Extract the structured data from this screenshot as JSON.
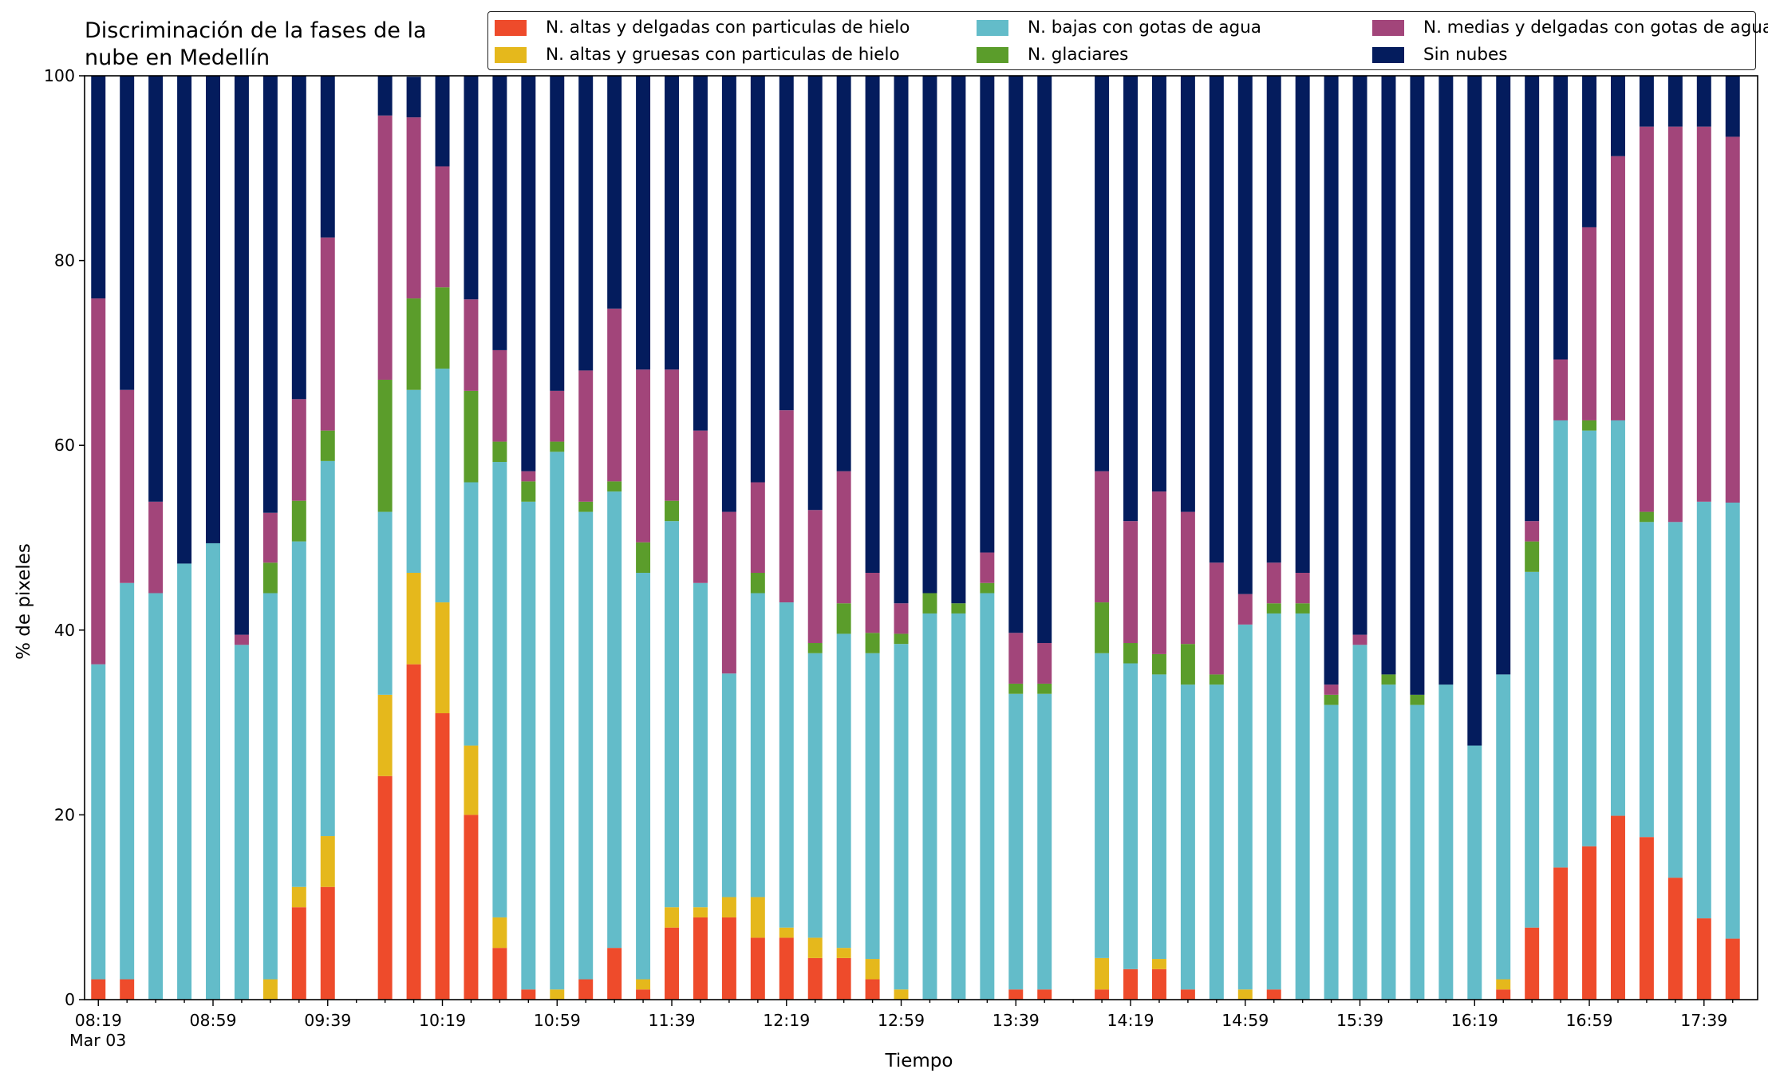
{
  "chart_data": {
    "type": "bar",
    "stacked": true,
    "title": "Discriminación de la fases de la\nnube en Medellín",
    "xlabel": "Tiempo",
    "ylabel": "% de pixeles",
    "ylim": [
      0,
      100
    ],
    "yticks": [
      "0",
      "20",
      "40",
      "60",
      "80",
      "100"
    ],
    "xtick_labels": [
      "08:19",
      "08:59",
      "09:39",
      "10:19",
      "10:59",
      "11:39",
      "12:19",
      "12:59",
      "13:39",
      "14:19",
      "14:59",
      "15:39",
      "16:19",
      "16:59",
      "17:39"
    ],
    "date_label": "Mar 03",
    "legend_position": "top",
    "n_slots": 58,
    "slot_interval_minutes": 10,
    "series": [
      {
        "name": "N. altas y delgadas con particulas de hielo",
        "color": "#ee4b2b",
        "values": [
          2.2,
          2.2,
          0,
          0,
          0,
          0,
          0,
          10,
          12.2,
          null,
          24.2,
          36.3,
          31,
          20,
          5.6,
          1.1,
          0,
          2.2,
          5.6,
          1.1,
          7.8,
          8.9,
          8.9,
          6.7,
          6.7,
          4.5,
          4.5,
          2.2,
          0,
          0,
          0,
          0,
          1.1,
          1.1,
          null,
          1.1,
          3.3,
          3.3,
          1.1,
          0,
          0,
          1.1,
          0,
          0,
          0,
          0,
          0,
          0,
          0,
          1.1,
          7.8,
          14.3,
          16.6,
          19.9,
          17.6,
          13.2,
          8.8,
          6.6
        ]
      },
      {
        "name": "N. altas y gruesas con particulas de hielo",
        "color": "#e5b81c",
        "values": [
          0,
          0,
          0,
          0,
          0,
          0,
          2.2,
          2.2,
          5.5,
          null,
          8.8,
          9.9,
          12,
          7.5,
          3.3,
          0,
          1.1,
          0,
          0,
          1.1,
          2.2,
          1.1,
          2.2,
          4.4,
          1.1,
          2.2,
          1.1,
          2.2,
          1.1,
          0,
          0,
          0,
          0,
          0,
          null,
          3.4,
          0,
          1.1,
          0,
          0,
          1.1,
          0,
          0,
          0,
          0,
          0,
          0,
          0,
          0,
          1.1,
          0,
          0,
          0,
          0,
          0,
          0,
          0,
          0
        ]
      },
      {
        "name": "N. bajas con gotas de agua",
        "color": "#63bcc9",
        "values": [
          34.1,
          42.9,
          44,
          47.2,
          49.4,
          38.4,
          41.8,
          37.4,
          40.6,
          null,
          19.8,
          19.8,
          25.3,
          28.5,
          49.3,
          52.8,
          58.2,
          50.6,
          49.4,
          44,
          41.8,
          35.1,
          24.2,
          32.9,
          35.2,
          30.8,
          34,
          33.1,
          37.4,
          41.8,
          41.8,
          44,
          32,
          32,
          null,
          33,
          33.1,
          30.8,
          33,
          34.1,
          39.5,
          40.7,
          41.8,
          31.9,
          38.4,
          34.1,
          31.9,
          34.1,
          27.5,
          33,
          38.5,
          48.4,
          45,
          42.8,
          34.1,
          38.5,
          45.1,
          47.2
        ]
      },
      {
        "name": "N. glaciares",
        "color": "#5b9d2b",
        "values": [
          0,
          0,
          0,
          0,
          0,
          0,
          3.3,
          4.4,
          3.3,
          null,
          14.3,
          9.9,
          8.8,
          9.9,
          2.2,
          2.2,
          1.1,
          1.1,
          1.1,
          3.3,
          2.2,
          0,
          0,
          2.2,
          0,
          1.1,
          3.3,
          2.2,
          1.1,
          2.2,
          1.1,
          1.1,
          1.1,
          1.1,
          null,
          5.5,
          2.2,
          2.2,
          4.4,
          1.1,
          0,
          1.1,
          1.1,
          1.1,
          0,
          1.1,
          1.1,
          0,
          0,
          0,
          3.3,
          0,
          1.1,
          0,
          1.1,
          0,
          0,
          0
        ]
      },
      {
        "name": "N. medias y delgadas con gotas de agua",
        "color": "#a2457a",
        "values": [
          39.6,
          20.9,
          9.9,
          0,
          0,
          1.1,
          5.4,
          11,
          20.9,
          null,
          28.6,
          19.6,
          13.1,
          9.9,
          9.9,
          1.1,
          5.5,
          14.2,
          18.7,
          18.7,
          14.2,
          16.5,
          17.5,
          9.8,
          20.8,
          14.4,
          14.3,
          6.5,
          3.3,
          0,
          0,
          3.3,
          5.5,
          4.4,
          null,
          14.2,
          13.2,
          17.6,
          14.3,
          12.1,
          3.3,
          4.4,
          3.3,
          1.1,
          1.1,
          0,
          0,
          0,
          0,
          0,
          2.2,
          6.6,
          20.9,
          28.6,
          41.7,
          42.8,
          40.6,
          39.6
        ]
      },
      {
        "name": "Sin nubes",
        "color": "#041c5d",
        "values": [
          24.1,
          34,
          46.1,
          52.8,
          50.6,
          60.5,
          47.3,
          35,
          17.5,
          null,
          4.4,
          4.4,
          9.8,
          24.2,
          29.7,
          42.8,
          34.1,
          31.9,
          25.2,
          31.8,
          31.8,
          38.4,
          47.2,
          44,
          36.2,
          47,
          42.8,
          53.8,
          57.1,
          56,
          57.1,
          53.8,
          61.5,
          61.5,
          null,
          42.8,
          48.2,
          45,
          47.2,
          52.7,
          56.1,
          52.7,
          53.8,
          65.9,
          60.5,
          64.8,
          67,
          65.9,
          72.5,
          64.8,
          48.2,
          30.7,
          16.4,
          8.7,
          5.5,
          5.5,
          5.5,
          6.6
        ]
      }
    ]
  }
}
